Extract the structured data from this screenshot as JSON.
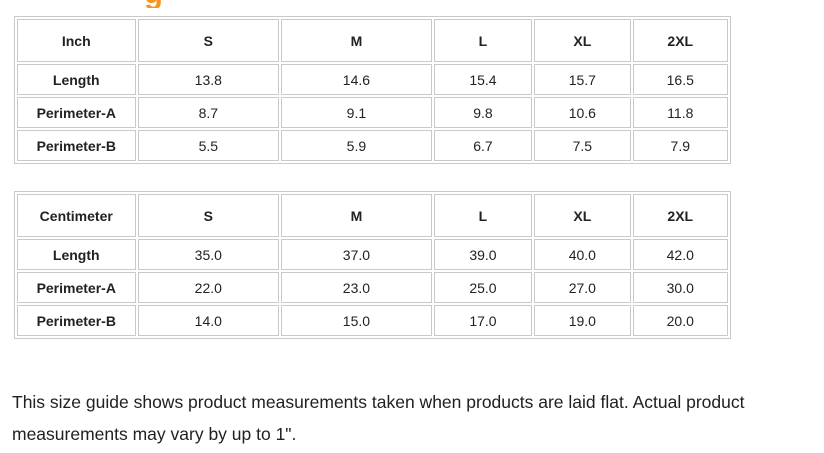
{
  "accent_color": "#f7941e",
  "heading_fragment": {
    "text": "g",
    "color": "#f7941e"
  },
  "tables": [
    {
      "unit": "Inch",
      "sizes": [
        "S",
        "M",
        "L",
        "XL",
        "2XL"
      ],
      "rows": [
        {
          "label": "Length",
          "values": [
            "13.8",
            "14.6",
            "15.4",
            "15.7",
            "16.5"
          ]
        },
        {
          "label": "Perimeter-A",
          "values": [
            "8.7",
            "9.1",
            "9.8",
            "10.6",
            "11.8"
          ]
        },
        {
          "label": "Perimeter-B",
          "values": [
            "5.5",
            "5.9",
            "6.7",
            "7.5",
            "7.9"
          ]
        }
      ]
    },
    {
      "unit": "Centimeter",
      "sizes": [
        "S",
        "M",
        "L",
        "XL",
        "2XL"
      ],
      "rows": [
        {
          "label": "Length",
          "values": [
            "35.0",
            "37.0",
            "39.0",
            "40.0",
            "42.0"
          ]
        },
        {
          "label": "Perimeter-A",
          "values": [
            "22.0",
            "23.0",
            "25.0",
            "27.0",
            "30.0"
          ]
        },
        {
          "label": "Perimeter-B",
          "values": [
            "14.0",
            "15.0",
            "17.0",
            "19.0",
            "20.0"
          ]
        }
      ]
    }
  ],
  "footer_note": "This size guide shows product measurements taken when products are laid flat. Actual product measurements may vary by up to 1\".",
  "colors": {
    "table_border": "#c9c9c9",
    "text": "#222222"
  }
}
